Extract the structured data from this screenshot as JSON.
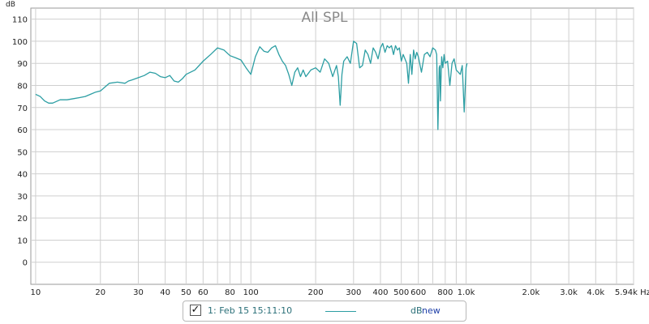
{
  "chart_data": {
    "type": "line",
    "title": "All SPL",
    "y_unit": "dB",
    "x_unit": "Hz",
    "x_scale": "log",
    "xlim": [
      9.5,
      6000
    ],
    "ylim": [
      -10,
      115
    ],
    "grid": true,
    "y_ticks": [
      0,
      10,
      20,
      30,
      40,
      50,
      60,
      70,
      80,
      90,
      100,
      110
    ],
    "x_ticks": [
      {
        "value": 10,
        "label": "10"
      },
      {
        "value": 20,
        "label": "20"
      },
      {
        "value": 30,
        "label": "30"
      },
      {
        "value": 40,
        "label": "40"
      },
      {
        "value": 50,
        "label": "50"
      },
      {
        "value": 60,
        "label": "60"
      },
      {
        "value": 80,
        "label": "80"
      },
      {
        "value": 100,
        "label": "100"
      },
      {
        "value": 200,
        "label": "200"
      },
      {
        "value": 300,
        "label": "300"
      },
      {
        "value": 400,
        "label": "400"
      },
      {
        "value": 500,
        "label": "500"
      },
      {
        "value": 600,
        "label": "600"
      },
      {
        "value": 800,
        "label": "800"
      },
      {
        "value": 1000,
        "label": "1.0k"
      },
      {
        "value": 2000,
        "label": "2.0k"
      },
      {
        "value": 3000,
        "label": "3.0k"
      },
      {
        "value": 4000,
        "label": "4.0k"
      },
      {
        "value": 5940,
        "label": "5.94k Hz"
      }
    ],
    "series": [
      {
        "name": "1: Feb 15 15:11:10",
        "color": "#2c9ea3",
        "x": [
          10,
          10.5,
          11,
          11.5,
          12,
          13,
          14,
          15,
          16,
          17,
          18,
          19,
          20,
          22,
          24,
          26,
          27,
          28,
          30,
          32,
          34,
          36,
          38,
          40,
          42,
          44,
          46,
          48,
          50,
          55,
          60,
          65,
          70,
          75,
          80,
          85,
          90,
          95,
          100,
          105,
          110,
          115,
          120,
          125,
          130,
          135,
          140,
          145,
          150,
          155,
          160,
          165,
          170,
          175,
          180,
          190,
          200,
          210,
          220,
          230,
          240,
          250,
          255,
          260,
          265,
          270,
          280,
          290,
          300,
          310,
          320,
          330,
          340,
          350,
          360,
          370,
          380,
          390,
          400,
          410,
          420,
          430,
          440,
          450,
          460,
          470,
          480,
          490,
          500,
          510,
          520,
          530,
          540,
          550,
          560,
          570,
          580,
          590,
          600,
          620,
          640,
          660,
          680,
          700,
          720,
          730,
          740,
          750,
          755,
          760,
          770,
          780,
          790,
          800,
          820,
          840,
          860,
          880,
          900,
          920,
          940,
          960,
          980,
          1000,
          1010
        ],
        "y": [
          76,
          75,
          73,
          72,
          72,
          73.5,
          73.5,
          74,
          74.5,
          75,
          76,
          77,
          77.5,
          81,
          81.5,
          81,
          82,
          82.5,
          83.5,
          84.5,
          86,
          85.5,
          84,
          83.5,
          84.5,
          82,
          81.5,
          83,
          85,
          87,
          91,
          94,
          97,
          96,
          93.5,
          92.5,
          91.5,
          88,
          85,
          93,
          97.5,
          95.5,
          95,
          97,
          98,
          94,
          91,
          89,
          85,
          80,
          86,
          88,
          84,
          87,
          84,
          87,
          88,
          86,
          92,
          90,
          84,
          89,
          84,
          71,
          85,
          91,
          93,
          90,
          100,
          99,
          88,
          89,
          96,
          94,
          90,
          97,
          95,
          92,
          97,
          99,
          95,
          98,
          97,
          98,
          94,
          98,
          96,
          97,
          91,
          94,
          92,
          90,
          81,
          94,
          85,
          96,
          92,
          95,
          93,
          86,
          94,
          95,
          93,
          97,
          96,
          94,
          60,
          88,
          89,
          73,
          93,
          88,
          94,
          90,
          91,
          80,
          90,
          92,
          87,
          86,
          85,
          89,
          68,
          88,
          90
        ]
      }
    ]
  },
  "legend": {
    "checked": "✓",
    "label": "1: Feb 15 15:11:10",
    "unit": "dB",
    "status": "new"
  }
}
